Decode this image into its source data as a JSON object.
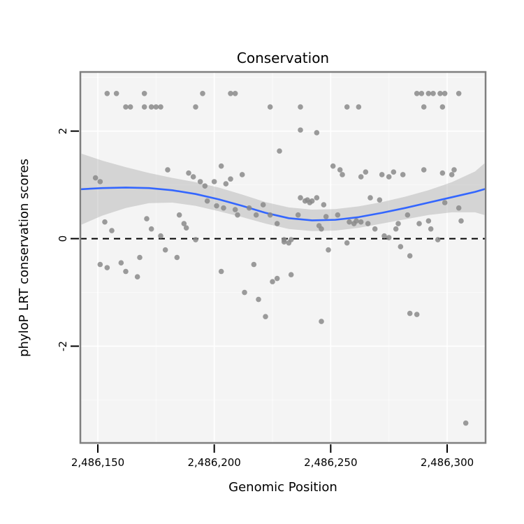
{
  "chart_data": {
    "type": "scatter",
    "title": "Conservation",
    "xlabel": "Genomic Position",
    "ylabel": "phyloP LRT conservation scores",
    "xlim": [
      2486142.5,
      2486316.5
    ],
    "ylim": [
      -3.8,
      3.1
    ],
    "grid": true,
    "legend": false,
    "xticks": [
      {
        "value": 2486150,
        "label": "2,486,150"
      },
      {
        "value": 2486200,
        "label": "2,486,200"
      },
      {
        "value": 2486250,
        "label": "2,486,250"
      },
      {
        "value": 2486300,
        "label": "2,486,300"
      }
    ],
    "yticks": [
      {
        "value": -2,
        "label": "-2"
      },
      {
        "value": 0,
        "label": "0"
      },
      {
        "value": 2,
        "label": "2"
      }
    ],
    "hline": {
      "y": 0,
      "style": "dashed",
      "color": "#000000"
    },
    "colors": {
      "panel_bg": "#f4f4f4",
      "grid": "#ffffff",
      "band": "#999999",
      "band_opacity": 0.35,
      "smooth": "#3366FF",
      "point": "#8a8a8a",
      "border": "#7f7f7f"
    },
    "points": [
      [
        2486149,
        1.13
      ],
      [
        2486151,
        1.06
      ],
      [
        2486151,
        -0.48
      ],
      [
        2486153,
        0.31
      ],
      [
        2486154,
        2.7
      ],
      [
        2486154,
        -0.54
      ],
      [
        2486156,
        0.15
      ],
      [
        2486158,
        2.7
      ],
      [
        2486160,
        -0.45
      ],
      [
        2486162,
        2.45
      ],
      [
        2486162,
        -0.61
      ],
      [
        2486164,
        2.45
      ],
      [
        2486167,
        -0.71
      ],
      [
        2486168,
        -0.35
      ],
      [
        2486170,
        2.7
      ],
      [
        2486170,
        2.45
      ],
      [
        2486171,
        0.37
      ],
      [
        2486173,
        2.45
      ],
      [
        2486173,
        0.18
      ],
      [
        2486175,
        2.45
      ],
      [
        2486177,
        2.45
      ],
      [
        2486177,
        0.05
      ],
      [
        2486179,
        -0.21
      ],
      [
        2486180,
        1.28
      ],
      [
        2486184,
        -0.35
      ],
      [
        2486185,
        0.44
      ],
      [
        2486187,
        0.28
      ],
      [
        2486188,
        0.2
      ],
      [
        2486189,
        1.22
      ],
      [
        2486191,
        1.15
      ],
      [
        2486192,
        2.45
      ],
      [
        2486192,
        -0.02
      ],
      [
        2486194,
        1.06
      ],
      [
        2486195,
        2.7
      ],
      [
        2486196,
        0.98
      ],
      [
        2486197,
        0.7
      ],
      [
        2486200,
        1.06
      ],
      [
        2486201,
        0.61
      ],
      [
        2486203,
        1.35
      ],
      [
        2486203,
        -0.61
      ],
      [
        2486204,
        0.57
      ],
      [
        2486205,
        1.02
      ],
      [
        2486207,
        2.7
      ],
      [
        2486207,
        1.11
      ],
      [
        2486209,
        2.7
      ],
      [
        2486209,
        0.54
      ],
      [
        2486210,
        0.44
      ],
      [
        2486212,
        1.19
      ],
      [
        2486213,
        -1.0
      ],
      [
        2486215,
        0.57
      ],
      [
        2486217,
        -0.48
      ],
      [
        2486218,
        0.44
      ],
      [
        2486219,
        -1.13
      ],
      [
        2486221,
        0.63
      ],
      [
        2486222,
        -1.45
      ],
      [
        2486224,
        2.45
      ],
      [
        2486224,
        0.44
      ],
      [
        2486225,
        -0.8
      ],
      [
        2486227,
        0.28
      ],
      [
        2486227,
        -0.74
      ],
      [
        2486228,
        1.63
      ],
      [
        2486230,
        -0.02
      ],
      [
        2486230,
        -0.06
      ],
      [
        2486232,
        -0.08
      ],
      [
        2486233,
        -0.02
      ],
      [
        2486233,
        -0.67
      ],
      [
        2486236,
        0.44
      ],
      [
        2486237,
        2.45
      ],
      [
        2486237,
        2.02
      ],
      [
        2486237,
        0.76
      ],
      [
        2486239,
        0.7
      ],
      [
        2486240,
        0.72
      ],
      [
        2486241,
        0.67
      ],
      [
        2486242,
        0.7
      ],
      [
        2486244,
        1.97
      ],
      [
        2486244,
        0.76
      ],
      [
        2486245,
        0.24
      ],
      [
        2486246,
        0.18
      ],
      [
        2486246,
        -1.54
      ],
      [
        2486247,
        0.63
      ],
      [
        2486248,
        0.41
      ],
      [
        2486249,
        -0.21
      ],
      [
        2486251,
        1.35
      ],
      [
        2486253,
        0.44
      ],
      [
        2486254,
        1.28
      ],
      [
        2486255,
        1.19
      ],
      [
        2486257,
        2.45
      ],
      [
        2486257,
        -0.08
      ],
      [
        2486258,
        0.31
      ],
      [
        2486260,
        0.28
      ],
      [
        2486261,
        0.33
      ],
      [
        2486262,
        2.45
      ],
      [
        2486263,
        0.31
      ],
      [
        2486263,
        1.15
      ],
      [
        2486265,
        1.24
      ],
      [
        2486266,
        0.28
      ],
      [
        2486267,
        0.76
      ],
      [
        2486269,
        0.18
      ],
      [
        2486271,
        0.72
      ],
      [
        2486272,
        1.19
      ],
      [
        2486273,
        0.05
      ],
      [
        2486275,
        1.15
      ],
      [
        2486275,
        0.02
      ],
      [
        2486277,
        1.24
      ],
      [
        2486278,
        0.18
      ],
      [
        2486279,
        0.28
      ],
      [
        2486280,
        -0.15
      ],
      [
        2486281,
        1.19
      ],
      [
        2486283,
        0.44
      ],
      [
        2486284,
        -0.32
      ],
      [
        2486284,
        -1.39
      ],
      [
        2486287,
        2.7
      ],
      [
        2486287,
        -1.41
      ],
      [
        2486288,
        0.28
      ],
      [
        2486289,
        2.7
      ],
      [
        2486290,
        2.45
      ],
      [
        2486290,
        1.28
      ],
      [
        2486292,
        2.7
      ],
      [
        2486292,
        0.33
      ],
      [
        2486293,
        0.18
      ],
      [
        2486294,
        2.7
      ],
      [
        2486296,
        -0.02
      ],
      [
        2486297,
        2.7
      ],
      [
        2486298,
        2.45
      ],
      [
        2486298,
        1.22
      ],
      [
        2486299,
        2.7
      ],
      [
        2486299,
        0.67
      ],
      [
        2486302,
        1.19
      ],
      [
        2486303,
        1.28
      ],
      [
        2486305,
        2.7
      ],
      [
        2486305,
        0.57
      ],
      [
        2486306,
        0.33
      ],
      [
        2486308,
        -3.43
      ]
    ],
    "smooth": {
      "x": [
        2486143,
        2486152,
        2486162,
        2486172,
        2486182,
        2486192,
        2486202,
        2486212,
        2486222,
        2486232,
        2486242,
        2486252,
        2486262,
        2486272,
        2486282,
        2486292,
        2486302,
        2486312,
        2486316
      ],
      "fit": [
        0.92,
        0.94,
        0.95,
        0.94,
        0.9,
        0.83,
        0.73,
        0.61,
        0.48,
        0.38,
        0.34,
        0.35,
        0.4,
        0.48,
        0.57,
        0.67,
        0.77,
        0.87,
        0.92
      ],
      "upper": [
        1.58,
        1.45,
        1.33,
        1.22,
        1.13,
        1.05,
        0.95,
        0.82,
        0.68,
        0.58,
        0.54,
        0.55,
        0.6,
        0.68,
        0.78,
        0.9,
        1.05,
        1.25,
        1.4
      ],
      "lower": [
        0.26,
        0.43,
        0.57,
        0.66,
        0.67,
        0.61,
        0.51,
        0.4,
        0.28,
        0.18,
        0.14,
        0.15,
        0.2,
        0.28,
        0.36,
        0.44,
        0.49,
        0.49,
        0.44
      ]
    }
  }
}
